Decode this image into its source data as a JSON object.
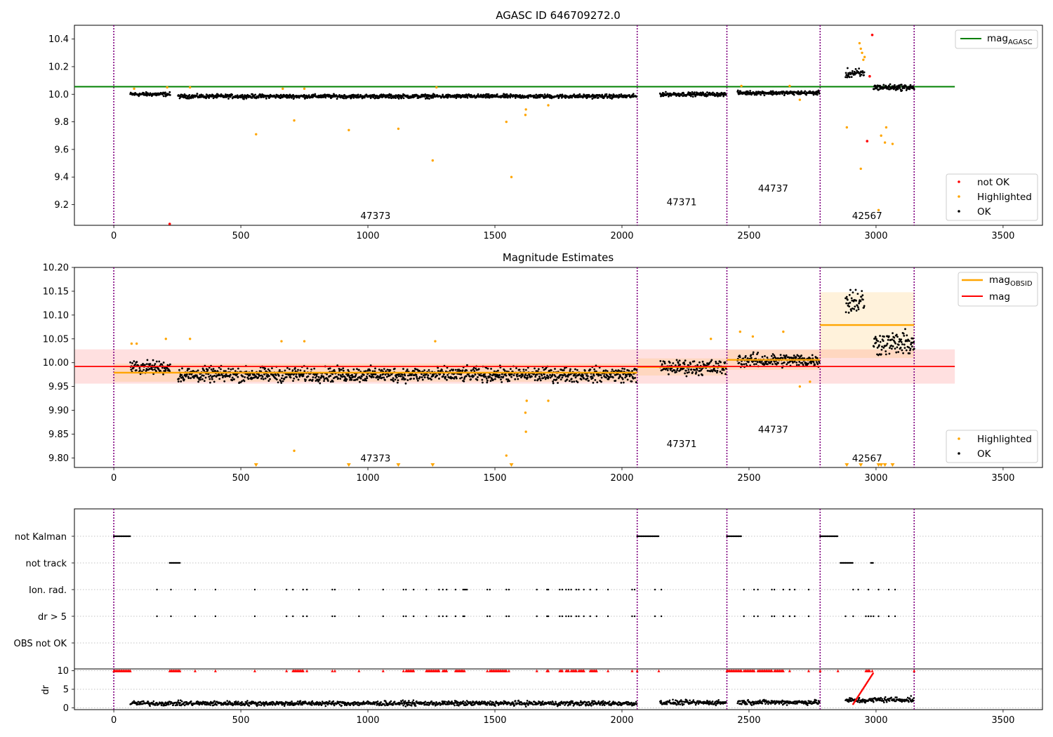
{
  "figure": {
    "panels": {
      "top": {
        "title": "AGASC ID 646709272.0",
        "legend_upper": [
          "mag_AGASC"
        ],
        "legend_lower": [
          "not OK",
          "Highlighted",
          "OK"
        ]
      },
      "middle": {
        "title": "Magnitude Estimates",
        "legend_upper": [
          "mag_OBSID",
          "mag"
        ],
        "legend_lower": [
          "Highlighted",
          "OK"
        ]
      },
      "bottom": {
        "flag_labels": [
          "not Kalman",
          "not track",
          "Ion. rad.",
          "dr > 5",
          "OBS not OK"
        ],
        "dr_ylabel": "dr"
      }
    },
    "obsids": [
      {
        "label": "47373",
        "x": 1030,
        "top_y": 9.12,
        "mid_y": 9.8
      },
      {
        "label": "47371",
        "x": 2235,
        "top_y": 9.22,
        "mid_y": 9.83
      },
      {
        "label": "44737",
        "x": 2595,
        "top_y": 9.32,
        "mid_y": 9.86
      },
      {
        "label": "42567",
        "x": 2965,
        "top_y": 9.12,
        "mid_y": 9.8
      }
    ],
    "colors": {
      "ok": "#000000",
      "not_ok": "#ff0000",
      "highlighted": "#ffa500",
      "mag_agasc": "#008000",
      "mag": "#ff0000",
      "mag_obsid": "#ffa500",
      "boundary": "#800080",
      "grid": "#b0b0b0"
    }
  },
  "chart_data": [
    {
      "type": "scatter",
      "title": "AGASC ID 646709272.0",
      "xlabel": "",
      "ylabel": "",
      "xlim": [
        -155,
        3655
      ],
      "ylim": [
        9.05,
        10.5
      ],
      "xticks": [
        0,
        500,
        1000,
        1500,
        2000,
        2500,
        3000,
        3500
      ],
      "yticks": [
        9.2,
        9.4,
        9.6,
        9.8,
        10.0,
        10.2,
        10.4
      ],
      "obsid_boundaries": [
        0,
        2060,
        2413,
        2780,
        3150
      ],
      "mag_agasc": {
        "value": 10.055,
        "x": [
          -155,
          3310
        ]
      },
      "segments_ok": [
        {
          "x0": 65,
          "x1": 222,
          "center": 10.0,
          "spread": 0.02
        },
        {
          "x0": 253,
          "x1": 2058,
          "center": 9.985,
          "spread": 0.02
        },
        {
          "x0": 2150,
          "x1": 2410,
          "center": 10.0,
          "spread": 0.02
        },
        {
          "x0": 2455,
          "x1": 2778,
          "center": 10.01,
          "spread": 0.02
        },
        {
          "x0": 2880,
          "x1": 2955,
          "center": 10.15,
          "spread": 0.05
        },
        {
          "x0": 2990,
          "x1": 3150,
          "center": 10.05,
          "spread": 0.03
        }
      ],
      "highlighted": [
        {
          "x": 560,
          "y": 9.71
        },
        {
          "x": 710,
          "y": 9.81
        },
        {
          "x": 925,
          "y": 9.74
        },
        {
          "x": 1120,
          "y": 9.75
        },
        {
          "x": 1255,
          "y": 9.52
        },
        {
          "x": 1545,
          "y": 9.8
        },
        {
          "x": 1565,
          "y": 9.4
        },
        {
          "x": 1620,
          "y": 9.85
        },
        {
          "x": 1622,
          "y": 9.89
        },
        {
          "x": 1710,
          "y": 9.92
        },
        {
          "x": 2885,
          "y": 9.76
        },
        {
          "x": 2940,
          "y": 9.46
        },
        {
          "x": 3010,
          "y": 9.16
        },
        {
          "x": 3020,
          "y": 9.7
        },
        {
          "x": 3035,
          "y": 9.65
        },
        {
          "x": 3040,
          "y": 9.76
        },
        {
          "x": 3065,
          "y": 9.64
        },
        {
          "x": 2935,
          "y": 10.37
        },
        {
          "x": 2940,
          "y": 10.33
        },
        {
          "x": 2945,
          "y": 10.3
        },
        {
          "x": 2950,
          "y": 10.25
        },
        {
          "x": 2955,
          "y": 10.27
        },
        {
          "x": 80,
          "y": 10.04
        },
        {
          "x": 210,
          "y": 10.05
        },
        {
          "x": 300,
          "y": 10.05
        },
        {
          "x": 665,
          "y": 10.04
        },
        {
          "x": 750,
          "y": 10.04
        },
        {
          "x": 1270,
          "y": 10.05
        },
        {
          "x": 2470,
          "y": 10.06
        },
        {
          "x": 2660,
          "y": 10.06
        },
        {
          "x": 2700,
          "y": 9.96
        }
      ],
      "not_ok": [
        {
          "x": 220,
          "y": 9.06
        },
        {
          "x": 2965,
          "y": 9.66
        },
        {
          "x": 2975,
          "y": 10.13
        },
        {
          "x": 2985,
          "y": 10.43
        }
      ]
    },
    {
      "type": "scatter",
      "title": "Magnitude Estimates",
      "xlabel": "",
      "ylabel": "",
      "xlim": [
        -155,
        3655
      ],
      "ylim": [
        9.78,
        10.2
      ],
      "xticks": [
        0,
        500,
        1000,
        1500,
        2000,
        2500,
        3000,
        3500
      ],
      "yticks": [
        9.8,
        9.85,
        9.9,
        9.95,
        10.0,
        10.05,
        10.1,
        10.15,
        10.2
      ],
      "obsid_boundaries": [
        0,
        2060,
        2413,
        2780,
        3150
      ],
      "mag": {
        "value": 9.992,
        "band": [
          9.956,
          10.028
        ],
        "x": [
          -155,
          3310
        ]
      },
      "mag_obsid": [
        {
          "x0": 0,
          "x1": 2060,
          "value": 9.979,
          "band": [
            9.96,
            9.998
          ]
        },
        {
          "x0": 2060,
          "x1": 2413,
          "value": 9.991,
          "band": [
            9.973,
            10.009
          ]
        },
        {
          "x0": 2413,
          "x1": 2780,
          "value": 10.006,
          "band": [
            9.985,
            10.027
          ]
        },
        {
          "x0": 2780,
          "x1": 3150,
          "value": 10.079,
          "band": [
            10.01,
            10.148
          ]
        }
      ],
      "segments_ok": [
        {
          "x0": 65,
          "x1": 222,
          "center": 9.99,
          "spread": 0.02
        },
        {
          "x0": 253,
          "x1": 2058,
          "center": 9.975,
          "spread": 0.022
        },
        {
          "x0": 2150,
          "x1": 2410,
          "center": 9.99,
          "spread": 0.022
        },
        {
          "x0": 2455,
          "x1": 2778,
          "center": 10.005,
          "spread": 0.02
        },
        {
          "x0": 2880,
          "x1": 2955,
          "center": 10.13,
          "spread": 0.04
        },
        {
          "x0": 2990,
          "x1": 3150,
          "center": 10.04,
          "spread": 0.035
        }
      ],
      "highlighted": [
        {
          "x": 70,
          "y": 10.04
        },
        {
          "x": 90,
          "y": 10.04
        },
        {
          "x": 205,
          "y": 10.05
        },
        {
          "x": 300,
          "y": 10.05
        },
        {
          "x": 660,
          "y": 10.045
        },
        {
          "x": 750,
          "y": 10.045
        },
        {
          "x": 710,
          "y": 9.815
        },
        {
          "x": 1265,
          "y": 10.045
        },
        {
          "x": 1545,
          "y": 9.805
        },
        {
          "x": 1620,
          "y": 9.895
        },
        {
          "x": 1622,
          "y": 9.855
        },
        {
          "x": 1625,
          "y": 9.92
        },
        {
          "x": 1710,
          "y": 9.92
        },
        {
          "x": 2350,
          "y": 10.05
        },
        {
          "x": 2465,
          "y": 10.065
        },
        {
          "x": 2515,
          "y": 10.055
        },
        {
          "x": 2635,
          "y": 10.065
        },
        {
          "x": 2740,
          "y": 9.96
        },
        {
          "x": 2700,
          "y": 9.95
        }
      ],
      "below_axis_markers": [
        560,
        925,
        1120,
        1255,
        1565,
        2885,
        2940,
        3010,
        3020,
        3035,
        3065
      ]
    },
    {
      "type": "scatter",
      "title": "",
      "xlabel": "",
      "ylabel": "dr",
      "xlim": [
        -155,
        3655
      ],
      "flag_rows": [
        "not Kalman",
        "not track",
        "Ion. rad.",
        "dr > 5",
        "OBS not OK"
      ],
      "flag_ranges": {
        "not Kalman": [
          [
            0,
            65
          ],
          [
            2060,
            2145
          ],
          [
            2413,
            2470
          ],
          [
            2780,
            2850
          ]
        ],
        "not track": [
          [
            220,
            260
          ],
          [
            2860,
            2910
          ],
          [
            2980,
            2990
          ]
        ],
        "Ion. rad.": [
          170,
          225,
          320,
          400,
          555,
          680,
          705,
          745,
          760,
          860,
          870,
          965,
          1060,
          1140,
          1150,
          1180,
          1230,
          1280,
          1295,
          1310,
          1345,
          1375,
          1380,
          1385,
          1390,
          1470,
          1480,
          1545,
          1555,
          1665,
          1705,
          1710,
          1755,
          1765,
          1780,
          1790,
          1800,
          1820,
          1830,
          1850,
          1875,
          1900,
          1945,
          2040,
          2050,
          2130,
          2155,
          2480,
          2520,
          2535,
          2590,
          2600,
          2635,
          2660,
          2680,
          2735,
          2910,
          2930,
          2970,
          3010,
          3050,
          3075
        ],
        "dr > 5": [
          170,
          225,
          320,
          400,
          555,
          680,
          705,
          745,
          760,
          860,
          870,
          965,
          1060,
          1140,
          1150,
          1180,
          1230,
          1280,
          1295,
          1310,
          1345,
          1375,
          1380,
          1470,
          1480,
          1545,
          1555,
          1665,
          1705,
          1710,
          1755,
          1765,
          1780,
          1790,
          1800,
          1820,
          1830,
          1850,
          1875,
          1900,
          1945,
          2040,
          2050,
          2130,
          2155,
          2480,
          2520,
          2535,
          2590,
          2600,
          2635,
          2660,
          2680,
          2735,
          2880,
          2910,
          2960,
          2970,
          2980,
          2990,
          3010,
          3050,
          3075
        ],
        "OBS not OK": []
      },
      "dr_ylim": [
        -0.5,
        10.5
      ],
      "dr_yticks": [
        0,
        5,
        10
      ],
      "dr_segments": [
        {
          "x0": 65,
          "x1": 2058,
          "center": 1.2,
          "spread": 0.9
        },
        {
          "x0": 2150,
          "x1": 2410,
          "center": 1.4,
          "spread": 0.9
        },
        {
          "x0": 2455,
          "x1": 2778,
          "center": 1.5,
          "spread": 0.9
        },
        {
          "x0": 2880,
          "x1": 2990,
          "center": 2.0,
          "spread": 1.0
        },
        {
          "x0": 2990,
          "x1": 3150,
          "center": 2.2,
          "spread": 1.0
        }
      ],
      "dr_clipped_x": [
        0,
        65,
        220,
        260,
        320,
        400,
        555,
        680,
        705,
        745,
        760,
        860,
        870,
        965,
        1060,
        1140,
        1150,
        1180,
        1230,
        1280,
        1295,
        1310,
        1345,
        1375,
        1380,
        1470,
        1480,
        1545,
        1555,
        1665,
        1705,
        1710,
        1755,
        1765,
        1780,
        1790,
        1800,
        1820,
        1830,
        1850,
        1875,
        1900,
        1945,
        2040,
        2060,
        2145,
        2413,
        2470,
        2480,
        2520,
        2535,
        2590,
        2600,
        2635,
        2660,
        2735,
        2780,
        2850,
        2960,
        2975,
        2985,
        3150
      ]
    }
  ]
}
